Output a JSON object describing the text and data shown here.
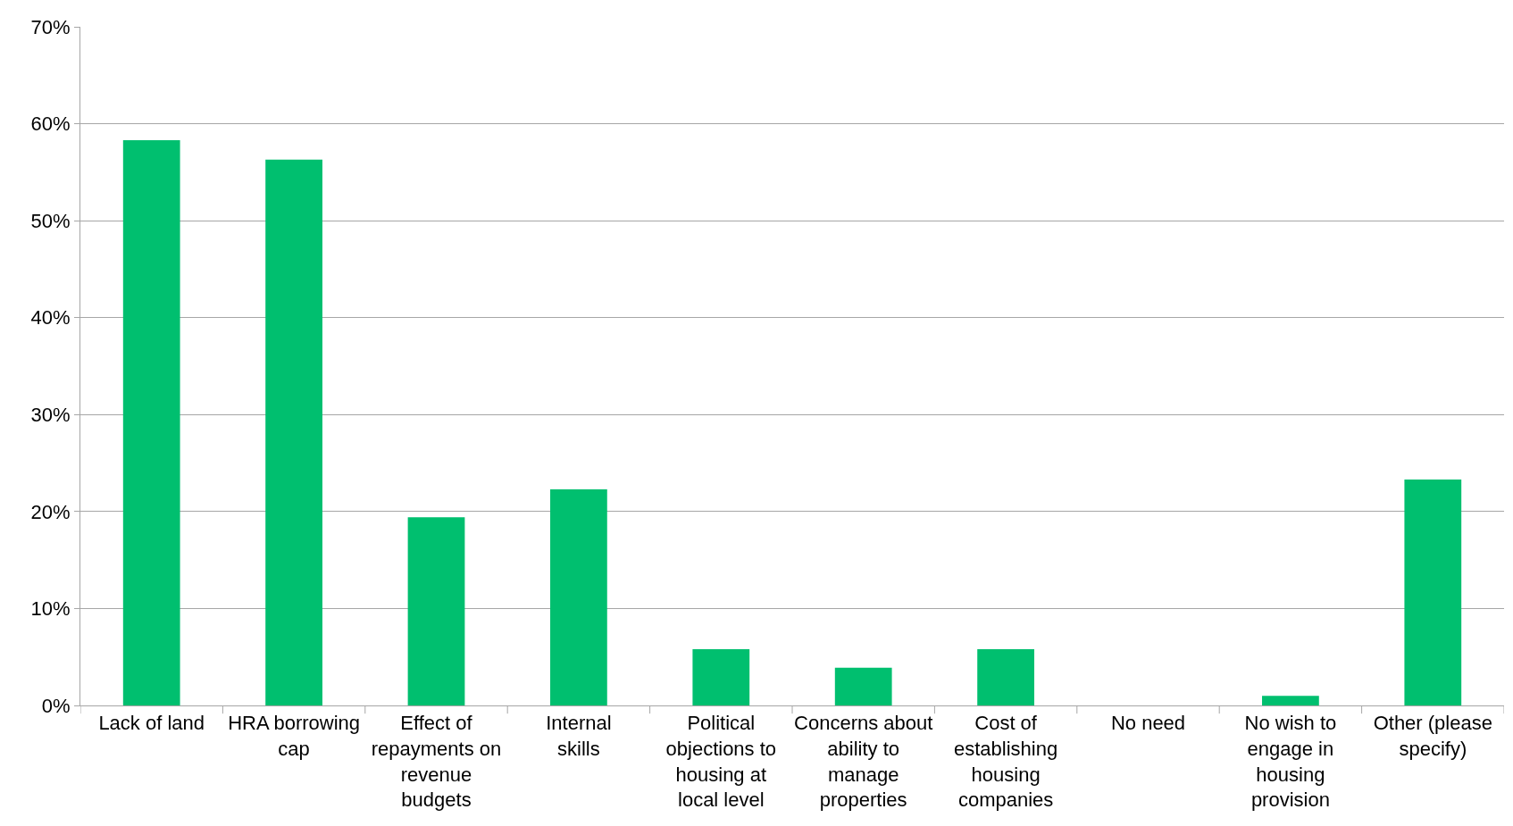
{
  "chart_data": {
    "type": "bar",
    "categories": [
      "Lack of land",
      "HRA borrowing cap",
      "Effect of repayments on revenue budgets",
      "Internal skills",
      "Political objections to housing at local level",
      "Concerns about ability to manage properties",
      "Cost of establishing housing companies",
      "No need",
      "No wish to engage in housing provision",
      "Other (please specify)"
    ],
    "values": [
      58.3,
      56.3,
      19.4,
      22.3,
      5.8,
      3.9,
      5.8,
      0,
      1.0,
      23.3
    ],
    "color": "#00bf6f",
    "ylim": [
      0,
      70
    ],
    "yticks": [
      {
        "value": 0,
        "label": "0%"
      },
      {
        "value": 10,
        "label": "10%"
      },
      {
        "value": 20,
        "label": "20%"
      },
      {
        "value": 30,
        "label": "30%"
      },
      {
        "value": 40,
        "label": "40%"
      },
      {
        "value": 50,
        "label": "50%"
      },
      {
        "value": 60,
        "label": "60%"
      },
      {
        "value": 70,
        "label": "70%"
      }
    ],
    "grid": "y"
  }
}
